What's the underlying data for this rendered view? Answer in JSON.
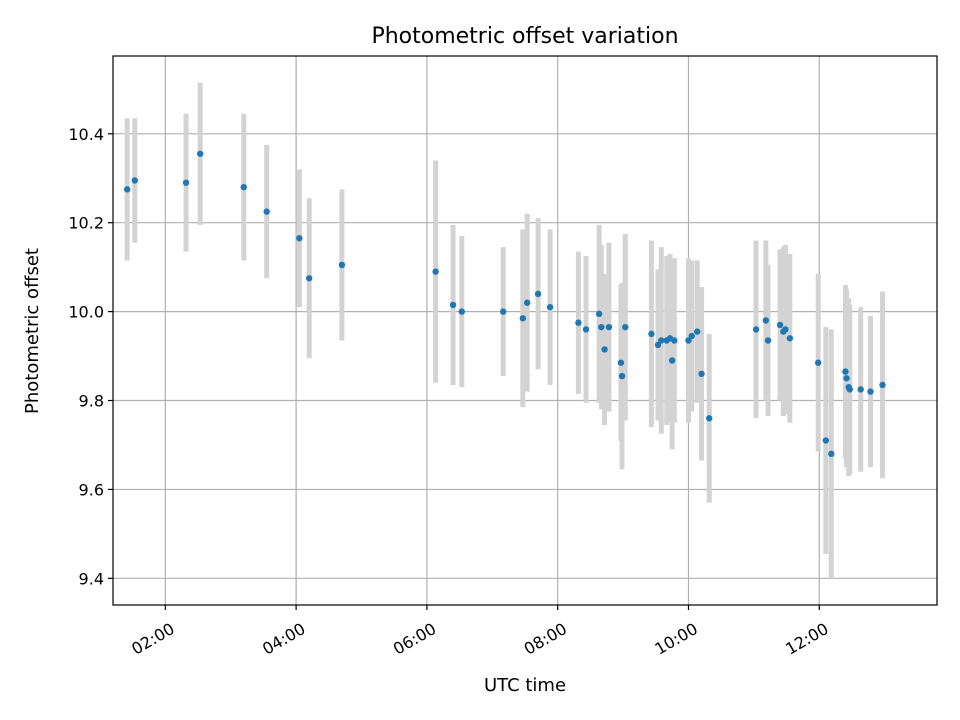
{
  "chart_data": {
    "type": "scatter",
    "title": "Photometric offset variation",
    "xlabel": "UTC time",
    "ylabel": "Photometric offset",
    "x_ticks": [
      "02:00",
      "04:00",
      "06:00",
      "08:00",
      "10:00",
      "12:00"
    ],
    "y_ticks": [
      "9.4",
      "9.6",
      "9.8",
      "10.0",
      "10.2",
      "10.4"
    ],
    "xlim": [
      "01:12",
      "13:48"
    ],
    "ylim": [
      9.34,
      10.575
    ],
    "grid": true,
    "colors": {
      "point": "#1f77b4",
      "errorbar": "#d3d3d3",
      "grid": "#b0b0b0"
    },
    "series": [
      {
        "x": [
          "01:25",
          "01:32",
          "02:19",
          "02:32",
          "03:12",
          "03:33",
          "04:03",
          "04:12",
          "04:42",
          "06:08",
          "06:24",
          "06:32",
          "07:10",
          "07:28",
          "07:32",
          "07:42",
          "07:53",
          "08:19",
          "08:26",
          "08:38",
          "08:40",
          "08:43",
          "08:47",
          "08:58",
          "08:59",
          "09:02",
          "09:26",
          "09:32",
          "09:35",
          "09:40",
          "09:43",
          "09:45",
          "09:47",
          "10:00",
          "10:03",
          "10:08",
          "10:12",
          "10:19",
          "11:02",
          "11:11",
          "11:13",
          "11:24",
          "11:27",
          "11:29",
          "11:33",
          "11:59",
          "12:06",
          "12:11",
          "12:24",
          "12:25",
          "12:27",
          "12:28",
          "12:38",
          "12:47",
          "12:58"
        ],
        "y": [
          10.275,
          10.295,
          10.29,
          10.355,
          10.28,
          10.225,
          10.165,
          10.075,
          10.105,
          10.09,
          10.015,
          10.0,
          10.0,
          9.985,
          10.02,
          10.04,
          10.01,
          9.975,
          9.96,
          9.995,
          9.965,
          9.915,
          9.965,
          9.885,
          9.855,
          9.965,
          9.95,
          9.925,
          9.935,
          9.935,
          9.94,
          9.89,
          9.935,
          9.935,
          9.945,
          9.955,
          9.86,
          9.76,
          9.96,
          9.98,
          9.935,
          9.97,
          9.955,
          9.96,
          9.94,
          9.885,
          9.71,
          9.68,
          9.865,
          9.85,
          9.83,
          9.825,
          9.825,
          9.82,
          9.835
        ],
        "yerr": [
          0.16,
          0.14,
          0.155,
          0.16,
          0.165,
          0.15,
          0.155,
          0.18,
          0.17,
          0.25,
          0.18,
          0.17,
          0.145,
          0.2,
          0.2,
          0.17,
          0.175,
          0.16,
          0.165,
          0.2,
          0.185,
          0.17,
          0.19,
          0.175,
          0.21,
          0.21,
          0.21,
          0.17,
          0.21,
          0.19,
          0.19,
          0.2,
          0.185,
          0.185,
          0.17,
          0.16,
          0.195,
          0.19,
          0.2,
          0.18,
          0.17,
          0.17,
          0.19,
          0.19,
          0.19,
          0.2,
          0.255,
          0.28,
          0.195,
          0.2,
          0.2,
          0.19,
          0.185,
          0.17,
          0.21
        ]
      }
    ]
  }
}
